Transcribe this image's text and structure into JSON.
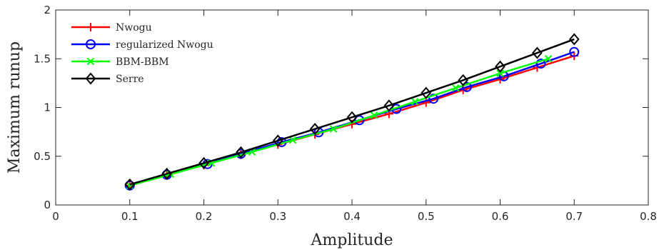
{
  "chart_data": {
    "type": "line",
    "title": "",
    "xlabel": "Amplitude",
    "ylabel": "Maximum runup",
    "xlim": [
      0,
      0.8
    ],
    "ylim": [
      0,
      2
    ],
    "xticks": [
      "0",
      "0.1",
      "0.2",
      "0.3",
      "0.4",
      "0.5",
      "0.6",
      "0.7",
      "0.8"
    ],
    "yticks": [
      "0",
      "0.5",
      "1",
      "1.5",
      "2"
    ],
    "grid": false,
    "legend_position": "top-left",
    "series": [
      {
        "name": "Nwogu",
        "color": "#ff0000",
        "marker": "plus",
        "x": [
          0.1,
          0.15,
          0.2,
          0.25,
          0.3,
          0.35,
          0.4,
          0.45,
          0.5,
          0.55,
          0.6,
          0.65,
          0.7
        ],
        "y": [
          0.2,
          0.305,
          0.41,
          0.515,
          0.62,
          0.725,
          0.83,
          0.935,
          1.05,
          1.18,
          1.29,
          1.41,
          1.53
        ]
      },
      {
        "name": "regularized Nwogu",
        "color": "#0000ff",
        "marker": "circle",
        "x": [
          0.1,
          0.15,
          0.205,
          0.25,
          0.305,
          0.355,
          0.41,
          0.46,
          0.51,
          0.555,
          0.605,
          0.655,
          0.7
        ],
        "y": [
          0.2,
          0.31,
          0.42,
          0.525,
          0.645,
          0.745,
          0.87,
          0.985,
          1.09,
          1.21,
          1.32,
          1.45,
          1.57
        ]
      },
      {
        "name": "BBM-BBM",
        "color": "#00ff00",
        "marker": "x",
        "x": [
          0.1,
          0.155,
          0.21,
          0.265,
          0.32,
          0.375,
          0.43,
          0.485,
          0.54,
          0.6,
          0.665
        ],
        "y": [
          0.2,
          0.315,
          0.43,
          0.545,
          0.665,
          0.78,
          0.92,
          1.06,
          1.2,
          1.35,
          1.5
        ]
      },
      {
        "name": "Serre",
        "color": "#000000",
        "marker": "diamond",
        "x": [
          0.1,
          0.15,
          0.2,
          0.25,
          0.3,
          0.35,
          0.4,
          0.45,
          0.5,
          0.55,
          0.6,
          0.65,
          0.7
        ],
        "y": [
          0.21,
          0.32,
          0.43,
          0.54,
          0.66,
          0.78,
          0.9,
          1.02,
          1.15,
          1.28,
          1.42,
          1.56,
          1.7
        ]
      }
    ]
  }
}
